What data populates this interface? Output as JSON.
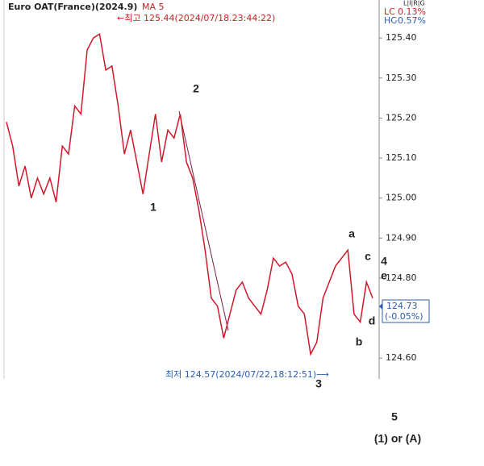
{
  "chart_data": {
    "type": "line",
    "title": "Euro OAT(France)(2024.9)",
    "indicator": "MA 5",
    "high_note": "←최고 125.44(2024/07/18.23:44:22)",
    "low_note": "최저 124.57(2024/07/22,18:12:51)⟶",
    "panel_tags": "L|I|R|G",
    "lc_label": "LC",
    "lc_value": "0.13%",
    "hc_label": "HC",
    "hc_value": "-0.57%",
    "last_price": 124.73,
    "last_change": "(-0.05%)",
    "color": "#d0182a",
    "values": [
      125.19,
      125.13,
      125.03,
      125.08,
      125.0,
      125.05,
      125.01,
      125.05,
      124.99,
      125.13,
      125.11,
      125.23,
      125.21,
      125.37,
      125.4,
      125.41,
      125.32,
      125.33,
      125.23,
      125.11,
      125.17,
      125.09,
      125.01,
      125.11,
      125.21,
      125.09,
      125.17,
      125.15,
      125.21,
      125.09,
      125.05,
      124.97,
      124.87,
      124.75,
      124.73,
      124.65,
      124.71,
      124.77,
      124.79,
      124.75,
      124.73,
      124.71,
      124.77,
      124.85,
      124.83,
      124.84,
      124.81,
      124.73,
      124.71,
      124.61,
      124.64,
      124.75,
      124.79,
      124.83,
      124.85,
      124.87,
      124.71,
      124.69,
      124.79,
      124.75
    ],
    "ylim": [
      124.548,
      125.495
    ],
    "yticks": [
      {
        "value": 124.6,
        "label": "124.60"
      },
      {
        "value": 124.8,
        "label": "124.80"
      },
      {
        "value": 124.9,
        "label": "124.90"
      },
      {
        "value": 125.0,
        "label": "125.00"
      },
      {
        "value": 125.1,
        "label": "125.10"
      },
      {
        "value": 125.2,
        "label": "125.20"
      },
      {
        "value": 125.3,
        "label": "125.30"
      },
      {
        "value": 125.4,
        "label": "125.40"
      }
    ],
    "grid": false,
    "wave_labels": [
      "1",
      "2",
      "3",
      "a",
      "b",
      "c",
      "4",
      "e",
      "d",
      "5",
      "(1) or (A)"
    ]
  }
}
